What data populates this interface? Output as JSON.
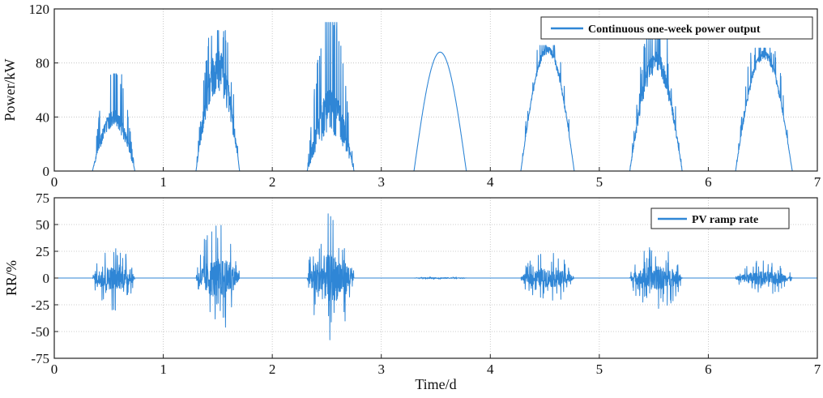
{
  "chart_data": [
    {
      "type": "line",
      "title": "",
      "xlabel": "",
      "ylabel": "Power/kW",
      "xlim": [
        0,
        7
      ],
      "ylim": [
        0,
        120
      ],
      "xticks": [
        "0",
        "1",
        "2",
        "3",
        "4",
        "5",
        "6",
        "7"
      ],
      "yticks": [
        "0",
        "40",
        "80",
        "120"
      ],
      "grid": true,
      "legend_position": "top-right",
      "series": [
        {
          "name": "Continuous one-week power output",
          "color": "#2f86d6",
          "days": [
            {
              "start": 0.35,
              "end": 0.74,
              "peak": 45,
              "spike": 72,
              "noise": 0.3,
              "ramp_noise": 0.45
            },
            {
              "start": 1.3,
              "end": 1.7,
              "peak": 90,
              "spike": 104,
              "noise": 0.35,
              "ramp_noise": 0.75
            },
            {
              "start": 2.32,
              "end": 2.75,
              "peak": 60,
              "spike": 110,
              "noise": 0.55,
              "ramp_noise": 0.9
            },
            {
              "start": 3.3,
              "end": 3.78,
              "peak": 88,
              "spike": 88,
              "noise": 0.0,
              "ramp_noise": 0.02
            },
            {
              "start": 4.28,
              "end": 4.77,
              "peak": 92,
              "spike": 93,
              "noise": 0.06,
              "ramp_noise": 0.35
            },
            {
              "start": 5.28,
              "end": 5.76,
              "peak": 88,
              "spike": 100,
              "noise": 0.18,
              "ramp_noise": 0.45
            },
            {
              "start": 6.25,
              "end": 6.77,
              "peak": 89,
              "spike": 91,
              "noise": 0.07,
              "ramp_noise": 0.25
            }
          ]
        }
      ]
    },
    {
      "type": "line",
      "title": "",
      "xlabel": "Time/d",
      "ylabel": "RR/%",
      "xlim": [
        0,
        7
      ],
      "ylim": [
        -75,
        75
      ],
      "xticks": [
        "0",
        "1",
        "2",
        "3",
        "4",
        "5",
        "6",
        "7"
      ],
      "yticks": [
        "-75",
        "-50",
        "-25",
        "0",
        "25",
        "50",
        "75"
      ],
      "grid": true,
      "legend_position": "top-right",
      "series": [
        {
          "name": "PV ramp rate",
          "color": "#2f86d6",
          "peak_max": 60,
          "peak_min": -63
        }
      ]
    }
  ]
}
